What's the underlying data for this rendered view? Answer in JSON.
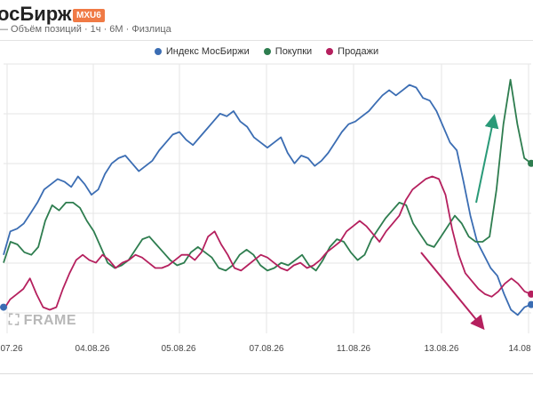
{
  "header": {
    "title": "осБиржи",
    "ticker": "MXU6",
    "subtitle": "— Объём позиций · 1ч · 6М · Физлица"
  },
  "legend": [
    {
      "label": "Индекс МосБиржи",
      "color": "#3b6db3"
    },
    {
      "label": "Покупки",
      "color": "#2e7d4f"
    },
    {
      "label": "Продажи",
      "color": "#b5205e"
    }
  ],
  "watermark": "FRAME",
  "colors": {
    "index": "#3b6db3",
    "buys": "#2e7d4f",
    "sells": "#b5205e",
    "grid": "#e6e6e6",
    "arrow_buys": "#2a9a78",
    "arrow_sells": "#b5205e"
  },
  "chart_data": {
    "type": "line",
    "x_tick_labels": [
      "07.26",
      "04.08.26",
      "05.08.26",
      "07.08.26",
      "11.08.26",
      "13.08.26",
      "14.08"
    ],
    "grid": true,
    "legend_position": "top-center",
    "y_axis_visible": false,
    "series": [
      {
        "name": "Индекс МосБиржи",
        "color": "#3b6db3",
        "values": [
          35,
          44,
          45,
          47,
          51,
          55,
          60,
          62,
          64,
          63,
          61,
          65,
          62,
          58,
          60,
          66,
          70,
          72,
          73,
          70,
          67,
          69,
          71,
          75,
          78,
          81,
          82,
          79,
          77,
          80,
          83,
          86,
          89,
          88,
          90,
          86,
          84,
          80,
          78,
          76,
          78,
          80,
          74,
          70,
          73,
          72,
          69,
          71,
          74,
          78,
          82,
          85,
          86,
          88,
          90,
          93,
          96,
          98,
          96,
          98,
          100,
          99,
          95,
          94,
          90,
          84,
          78,
          75,
          63,
          50,
          40,
          35,
          30,
          27,
          20,
          14,
          12,
          15,
          16
        ]
      },
      {
        "name": "Покупки",
        "color": "#2e7d4f",
        "values": [
          32,
          40,
          39,
          36,
          35,
          38,
          48,
          54,
          52,
          55,
          55,
          53,
          48,
          44,
          38,
          32,
          30,
          31,
          33,
          37,
          41,
          42,
          39,
          36,
          33,
          31,
          32,
          36,
          38,
          36,
          34,
          30,
          29,
          31,
          35,
          37,
          35,
          31,
          29,
          30,
          32,
          31,
          33,
          35,
          31,
          29,
          33,
          38,
          41,
          40,
          36,
          33,
          35,
          41,
          45,
          49,
          52,
          55,
          54,
          47,
          43,
          39,
          38,
          42,
          46,
          50,
          47,
          42,
          40,
          40,
          42,
          60,
          85,
          102,
          85,
          72,
          70
        ]
      },
      {
        "name": "Продажи",
        "color": "#b5205e",
        "values": [
          14,
          18,
          20,
          22,
          26,
          20,
          15,
          14,
          15,
          22,
          28,
          33,
          35,
          33,
          32,
          35,
          33,
          30,
          32,
          33,
          35,
          34,
          32,
          30,
          30,
          31,
          33,
          35,
          35,
          33,
          36,
          42,
          44,
          39,
          35,
          30,
          29,
          31,
          33,
          35,
          34,
          32,
          30,
          29,
          31,
          32,
          30,
          31,
          33,
          36,
          38,
          40,
          44,
          46,
          48,
          46,
          43,
          40,
          44,
          47,
          50,
          56,
          60,
          62,
          64,
          65,
          64,
          58,
          45,
          35,
          28,
          25,
          22,
          20,
          19,
          21,
          24,
          26,
          24,
          21,
          20
        ]
      }
    ],
    "annotations": [
      {
        "type": "arrow",
        "direction": "up",
        "near_series": "Покупки"
      },
      {
        "type": "arrow",
        "direction": "down",
        "near_series": "Продажи"
      }
    ]
  }
}
